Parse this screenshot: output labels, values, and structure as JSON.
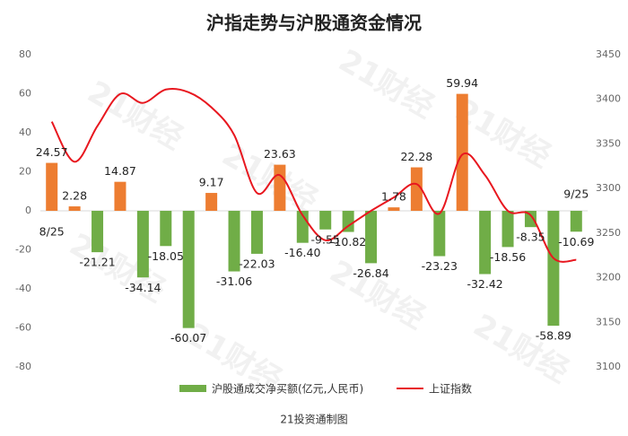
{
  "chart_data": {
    "type": "bar_line",
    "title": "沪指走势与沪股通资金情况",
    "watermark": "21财经",
    "source": "21投资通制图",
    "categories": [
      "8/25",
      null,
      null,
      null,
      null,
      null,
      null,
      null,
      null,
      null,
      null,
      null,
      null,
      null,
      null,
      null,
      null,
      null,
      null,
      null,
      null,
      null,
      null,
      "9/25"
    ],
    "series": [
      {
        "name": "沪股通成交净买额(亿元,人民币)",
        "color": "#70ad47",
        "positive_color": "#ed7d31",
        "type": "bar",
        "values": [
          24.57,
          2.28,
          -21.21,
          14.87,
          -34.14,
          -18.05,
          -60.07,
          9.17,
          -31.06,
          -22.03,
          23.63,
          -16.4,
          -9.55,
          -10.82,
          -26.84,
          1.78,
          22.28,
          -23.23,
          59.94,
          -32.42,
          -18.56,
          -8.35,
          -58.89,
          -10.69
        ],
        "value_labels": [
          "24.57",
          "2.28",
          "-21.21",
          "14.87",
          "-34.14",
          "-18.05",
          "-60.07",
          "9.17",
          "-31.06",
          "-22.03",
          "23.63",
          "-16.40",
          "-9.55",
          "-10.82",
          "-26.84",
          "1.78",
          "22.28",
          "-23.23",
          "59.94",
          "-32.42",
          "-18.56",
          "-8.35",
          "-58.89",
          "-10.69"
        ]
      },
      {
        "name": "上证指数",
        "color": "#e8171f",
        "type": "line",
        "axis": "y2",
        "values": [
          3375,
          3330,
          3370,
          3406,
          3396,
          3411,
          3408,
          3391,
          3360,
          3295,
          3315,
          3270,
          3242,
          3258,
          3275,
          3290,
          3305,
          3272,
          3338,
          3315,
          3275,
          3270,
          3222,
          3220
        ]
      }
    ],
    "ylim": [
      -80,
      80
    ],
    "yticks": [
      -80,
      -60,
      -40,
      -20,
      0,
      20,
      40,
      60,
      80
    ],
    "y2lim": [
      3100,
      3450
    ],
    "y2ticks": [
      3100,
      3150,
      3200,
      3250,
      3300,
      3350,
      3400,
      3450
    ],
    "grid": false
  }
}
